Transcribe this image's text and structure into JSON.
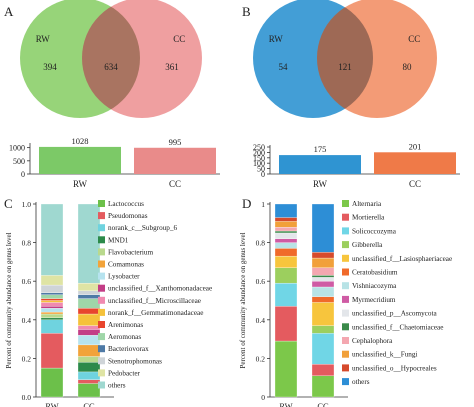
{
  "panels": {
    "A": {
      "letter": "A"
    },
    "B": {
      "letter": "B"
    },
    "C": {
      "letter": "C"
    },
    "D": {
      "letter": "D"
    }
  },
  "colors": {
    "venn_a_left": "#8ccf6a",
    "venn_a_right": "#ea7f80",
    "venn_b_left": "#2f94d2",
    "venn_b_right": "#ef7a48",
    "bar_a_rw": "#7cc967",
    "bar_a_cc": "#e98b8a",
    "bar_b_rw": "#2f94d2",
    "bar_b_cc": "#ef7a48"
  },
  "chart_data": [
    {
      "id": "A-venn",
      "type": "venn",
      "sets": [
        "RW",
        "CC"
      ],
      "values": {
        "RW_only": 394,
        "shared": 634,
        "CC_only": 361
      }
    },
    {
      "id": "A-bar",
      "type": "bar",
      "categories": [
        "RW",
        "CC"
      ],
      "values": [
        1028,
        995
      ],
      "yticks": [
        0,
        500,
        1000
      ],
      "ylim": [
        0,
        1100
      ]
    },
    {
      "id": "B-venn",
      "type": "venn",
      "sets": [
        "RW",
        "CC"
      ],
      "values": {
        "RW_only": 54,
        "shared": 121,
        "CC_only": 80
      }
    },
    {
      "id": "B-bar",
      "type": "bar",
      "categories": [
        "RW",
        "CC"
      ],
      "values": [
        175,
        201
      ],
      "yticks": [
        0,
        50,
        100,
        150,
        200,
        250
      ],
      "ylim": [
        0,
        250
      ]
    },
    {
      "id": "C",
      "type": "bar",
      "stacked": true,
      "categories": [
        "RW",
        "CC"
      ],
      "ylabel": "Percent of community abundance on genus level",
      "yticks": [
        "0.0",
        "0.2",
        "0.4",
        "0.6",
        "0.8",
        "1.0"
      ],
      "ylim": [
        0,
        1
      ],
      "legend_position": "right",
      "series": [
        {
          "name": "Lactococcus",
          "color": "#6cc04a",
          "values": [
            0.15,
            0.07
          ]
        },
        {
          "name": "Pseudomonas",
          "color": "#e45b5f",
          "values": [
            0.18,
            0.02
          ]
        },
        {
          "name": "norank_c__Subgroup_6",
          "color": "#6fd3df",
          "values": [
            0.07,
            0.04
          ]
        },
        {
          "name": "MND1",
          "color": "#2c8a4a",
          "values": [
            0.01,
            0.05
          ]
        },
        {
          "name": "Flavobacterium",
          "color": "#b9d98d",
          "values": [
            0.02,
            0.03
          ]
        },
        {
          "name": "Comamonas",
          "color": "#f2a33a",
          "values": [
            0.01,
            0.06
          ]
        },
        {
          "name": "Lysobacter",
          "color": "#b6e3ef",
          "values": [
            0.02,
            0.05
          ]
        },
        {
          "name": "unclassified_f__Xanthomonadaceae",
          "color": "#c33d86",
          "values": [
            0.01,
            0.03
          ]
        },
        {
          "name": "unclassified_f__Microscillaceae",
          "color": "#f08ab0",
          "values": [
            0.02,
            0.02
          ]
        },
        {
          "name": "norank_f__Gemmatimonadaceae",
          "color": "#f5c23b",
          "values": [
            0.01,
            0.06
          ]
        },
        {
          "name": "Arenimonas",
          "color": "#e8452d",
          "values": [
            0.01,
            0.03
          ]
        },
        {
          "name": "Aeromonas",
          "color": "#9fd6a8",
          "values": [
            0.02,
            0.05
          ]
        },
        {
          "name": "Bacteriovorax",
          "color": "#4e7aa6",
          "values": [
            0.01,
            0.02
          ]
        },
        {
          "name": "Stenotrophomonas",
          "color": "#cfd4d8",
          "values": [
            0.04,
            0.02
          ]
        },
        {
          "name": "Pedobacter",
          "color": "#dfe4a4",
          "values": [
            0.05,
            0.04
          ]
        },
        {
          "name": "others",
          "color": "#9fd8d0",
          "values": [
            0.37,
            0.41
          ]
        }
      ]
    },
    {
      "id": "D",
      "type": "bar",
      "stacked": true,
      "categories": [
        "RW",
        "CC"
      ],
      "ylabel": "Percent of community abundance on genus level",
      "yticks": [
        "0",
        "0.2",
        "0.4",
        "0.6",
        "0.8",
        "1"
      ],
      "ylim": [
        0,
        1
      ],
      "legend_position": "right",
      "series": [
        {
          "name": "Alternaria",
          "color": "#7cc84a",
          "values": [
            0.29,
            0.11
          ]
        },
        {
          "name": "Mortierella",
          "color": "#e45b5f",
          "values": [
            0.18,
            0.06
          ]
        },
        {
          "name": "Solicoccozyma",
          "color": "#70d6e6",
          "values": [
            0.12,
            0.16
          ]
        },
        {
          "name": "Gibberella",
          "color": "#9ccf5e",
          "values": [
            0.08,
            0.04
          ]
        },
        {
          "name": "unclassified_f__Lasiosphaeriaceae",
          "color": "#f7c53d",
          "values": [
            0.06,
            0.12
          ]
        },
        {
          "name": "Ceratobasidium",
          "color": "#f06a2a",
          "values": [
            0.04,
            0.03
          ]
        },
        {
          "name": "Vishniacozyma",
          "color": "#b8e3e6",
          "values": [
            0.03,
            0.05
          ]
        },
        {
          "name": "Myrmecridium",
          "color": "#cf5ba4",
          "values": [
            0.02,
            0.03
          ]
        },
        {
          "name": "unclassified_p__Ascomycota",
          "color": "#e3e6ea",
          "values": [
            0.03,
            0.02
          ]
        },
        {
          "name": "unclassified_f__Chaetomiaceae",
          "color": "#3a8a4a",
          "values": [
            0.01,
            0.01
          ]
        },
        {
          "name": "Cephalophora",
          "color": "#f4a7b0",
          "values": [
            0.02,
            0.04
          ]
        },
        {
          "name": "unclassified_k__Fungi",
          "color": "#f1a03a",
          "values": [
            0.03,
            0.05
          ]
        },
        {
          "name": "unclassified_o__Hypocreales",
          "color": "#d64a2c",
          "values": [
            0.02,
            0.03
          ]
        },
        {
          "name": "others",
          "color": "#2d8ed6",
          "values": [
            0.07,
            0.25
          ]
        }
      ]
    }
  ]
}
